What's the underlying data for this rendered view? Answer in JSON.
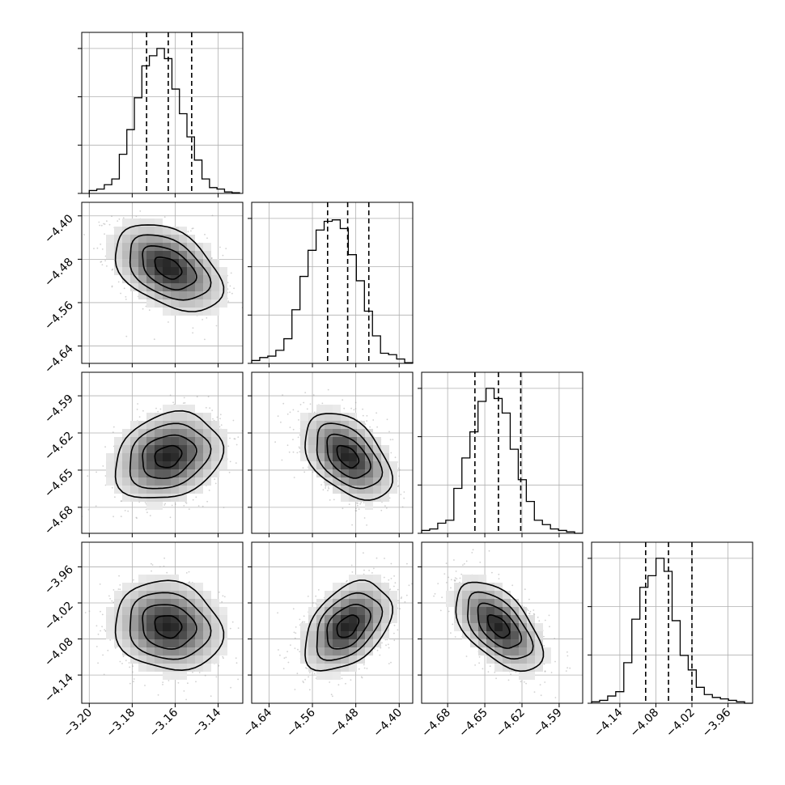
{
  "chart_data": {
    "type": "corner",
    "parameters": 4,
    "grid": true,
    "axis_ticks": [
      {
        "values": [
          -3.2,
          -3.18,
          -3.16,
          -3.14
        ],
        "labels": [
          "−3.20",
          "−3.18",
          "−3.16",
          "−3.14"
        ],
        "range": [
          -3.2035,
          -3.1285
        ]
      },
      {
        "values": [
          -4.64,
          -4.56,
          -4.48,
          -4.4
        ],
        "labels": [
          "−4.64",
          "−4.56",
          "−4.48",
          "−4.40"
        ],
        "range": [
          -4.672,
          -4.375
        ]
      },
      {
        "values": [
          -4.68,
          -4.65,
          -4.62,
          -4.59
        ],
        "labels": [
          "−4.68",
          "−4.65",
          "−4.62",
          "−4.59"
        ],
        "range": [
          -4.701,
          -4.571
        ]
      },
      {
        "values": [
          -4.14,
          -4.08,
          -4.02,
          -3.96
        ],
        "labels": [
          "−4.14",
          "−4.08",
          "−4.02",
          "−3.96"
        ],
        "range": [
          -4.187,
          -3.919
        ]
      }
    ],
    "marginals": [
      {
        "param": 0,
        "quantiles": [
          -3.1733,
          -3.1632,
          -3.1523
        ],
        "bin_edges_range": [
          -3.2,
          -3.13
        ],
        "counts": [
          0.02,
          0.03,
          0.06,
          0.1,
          0.27,
          0.44,
          0.66,
          0.88,
          0.95,
          1.0,
          0.93,
          0.72,
          0.55,
          0.39,
          0.23,
          0.1,
          0.04,
          0.03,
          0.01,
          0.005
        ]
      },
      {
        "param": 1,
        "quantiles": [
          -4.532,
          -4.495,
          -4.456
        ],
        "bin_edges_range": [
          -4.672,
          -4.375
        ],
        "counts": [
          0.02,
          0.04,
          0.05,
          0.09,
          0.17,
          0.37,
          0.6,
          0.78,
          0.92,
          0.98,
          0.99,
          0.93,
          0.75,
          0.57,
          0.36,
          0.19,
          0.07,
          0.06,
          0.03,
          0.005
        ]
      },
      {
        "param": 2,
        "quantiles": [
          -4.658,
          -4.639,
          -4.621
        ],
        "bin_edges_range": [
          -4.701,
          -4.571
        ],
        "counts": [
          0.02,
          0.03,
          0.07,
          0.09,
          0.31,
          0.52,
          0.7,
          0.91,
          1.0,
          0.93,
          0.83,
          0.58,
          0.37,
          0.22,
          0.09,
          0.06,
          0.03,
          0.02,
          0.01,
          0.0
        ]
      },
      {
        "param": 3,
        "quantiles": [
          -4.097,
          -4.059,
          -4.02
        ],
        "bin_edges_range": [
          -4.187,
          -3.919
        ],
        "counts": [
          0.01,
          0.02,
          0.05,
          0.08,
          0.28,
          0.58,
          0.8,
          0.88,
          1.0,
          0.91,
          0.57,
          0.33,
          0.23,
          0.11,
          0.06,
          0.04,
          0.03,
          0.02,
          0.01,
          0.0
        ]
      }
    ],
    "joint": [
      {
        "x": 0,
        "y": 1,
        "mean": [
          -3.1633,
          -4.496
        ],
        "sd": [
          0.0125,
          0.04
        ],
        "rho": -0.42
      },
      {
        "x": 0,
        "y": 2,
        "mean": [
          -3.1633,
          -4.639
        ],
        "sd": [
          0.0125,
          0.0175
        ],
        "rho": 0.22
      },
      {
        "x": 1,
        "y": 2,
        "mean": [
          -4.495,
          -4.639
        ],
        "sd": [
          0.04,
          0.0175
        ],
        "rho": -0.45
      },
      {
        "x": 0,
        "y": 3,
        "mean": [
          -3.1633,
          -4.059
        ],
        "sd": [
          0.0125,
          0.037
        ],
        "rho": -0.12
      },
      {
        "x": 1,
        "y": 3,
        "mean": [
          -4.495,
          -4.059
        ],
        "sd": [
          0.04,
          0.037
        ],
        "rho": 0.42
      },
      {
        "x": 2,
        "y": 3,
        "mean": [
          -4.639,
          -4.059
        ],
        "sd": [
          0.0175,
          0.037
        ],
        "rho": -0.55
      }
    ]
  }
}
